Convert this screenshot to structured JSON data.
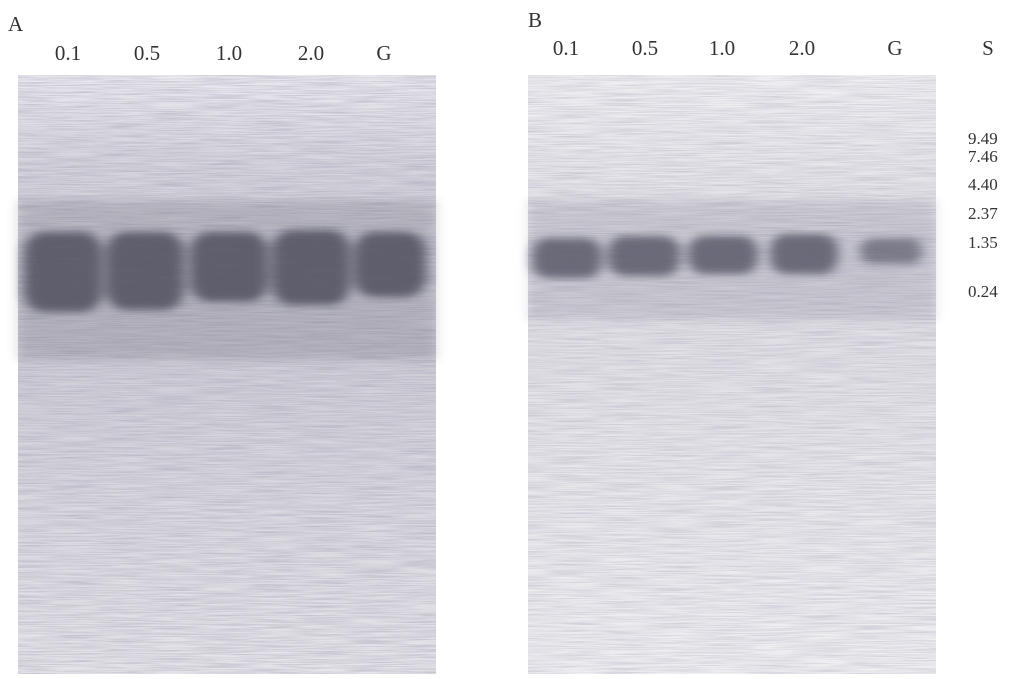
{
  "panels": [
    {
      "label": "A",
      "lanes": [
        "0.1",
        "0.5",
        "1.0",
        "2.0",
        "G"
      ]
    },
    {
      "label": "B",
      "lanes": [
        "0.1",
        "0.5",
        "1.0",
        "2.0",
        "G",
        "S"
      ]
    }
  ],
  "markers": [
    "9.49",
    "7.46",
    "4.40",
    "2.37",
    "1.35",
    "0.24"
  ]
}
